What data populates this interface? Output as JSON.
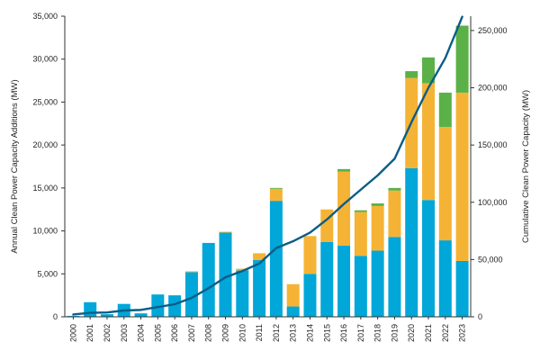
{
  "chart_data": {
    "type": "bar",
    "stacked": true,
    "categories": [
      "2000",
      "2001",
      "2002",
      "2003",
      "2004",
      "2005",
      "2006",
      "2007",
      "2008",
      "2009",
      "2010",
      "2011",
      "2012",
      "2013",
      "2014",
      "2015",
      "2016",
      "2017",
      "2018",
      "2019",
      "2020",
      "2021",
      "2022",
      "2023"
    ],
    "series": [
      {
        "color": "#00a7d8",
        "values": [
          100,
          1700,
          300,
          1500,
          400,
          2600,
          2500,
          5200,
          8600,
          9800,
          5400,
          6600,
          13500,
          1200,
          5000,
          8700,
          8300,
          7100,
          7700,
          9300,
          17300,
          13600,
          8900,
          6500
        ]
      },
      {
        "color": "#f5b335",
        "values": [
          0,
          0,
          0,
          0,
          0,
          0,
          0,
          100,
          0,
          100,
          200,
          800,
          1400,
          2600,
          4400,
          3800,
          8600,
          5100,
          5200,
          5400,
          10500,
          13600,
          13200,
          19600
        ]
      },
      {
        "color": "#5ab147",
        "values": [
          0,
          0,
          0,
          0,
          0,
          0,
          0,
          0,
          0,
          0,
          0,
          0,
          100,
          0,
          0,
          0,
          300,
          200,
          300,
          300,
          800,
          3000,
          4000,
          7800
        ]
      }
    ],
    "line_series": {
      "color": "#0b5d88",
      "axis": "right",
      "values": [
        2000,
        3500,
        3800,
        5500,
        6000,
        8500,
        11000,
        16500,
        25000,
        34500,
        40000,
        46500,
        60000,
        66000,
        73500,
        85000,
        98500,
        111000,
        123500,
        138000,
        170000,
        200000,
        226000,
        262000
      ]
    },
    "ylabel": "Annual Clean Power Capacity Additions (MW)",
    "y2label": "Cumulative Clean Power Capacity (MW)",
    "ylim": [
      0,
      35000
    ],
    "y2lim": [
      0,
      262500
    ],
    "yticks": [
      0,
      5000,
      10000,
      15000,
      20000,
      25000,
      30000,
      35000
    ],
    "yticklabels": [
      "0",
      "5,000",
      "10,000",
      "15,000",
      "20,000",
      "25,000",
      "30,000",
      "35,000"
    ],
    "y2ticks": [
      0,
      50000,
      100000,
      150000,
      200000,
      250000
    ],
    "y2ticklabels": [
      "0",
      "50,000",
      "100,000",
      "150,000",
      "200,000",
      "250,000"
    ],
    "grid": false,
    "legend": "none"
  }
}
